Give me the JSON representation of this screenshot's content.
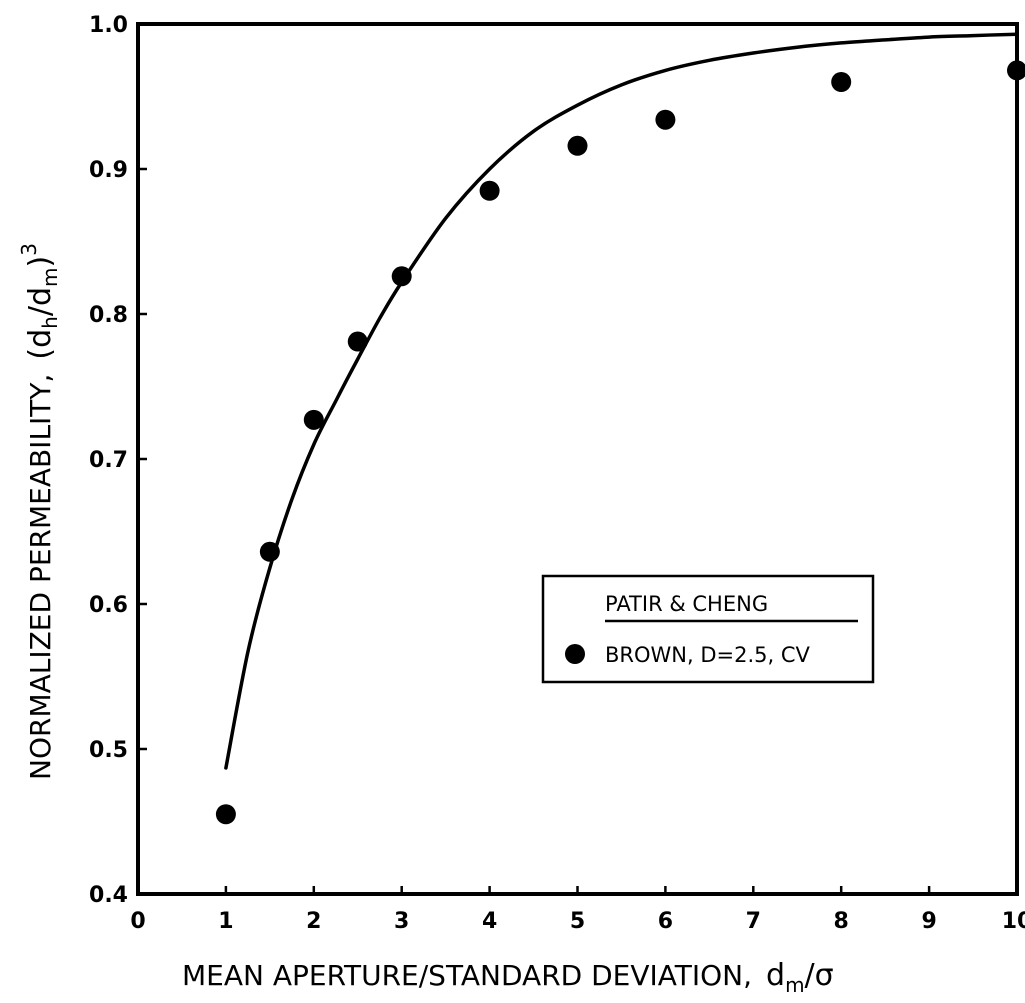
{
  "chart_data": {
    "type": "scatter",
    "xlabel": "MEAN APERTURE/STANDARD DEVIATION,",
    "xlabel_symbol": "d",
    "xlabel_symbol_sub": "m",
    "xlabel_symbol_tail": "/σ",
    "ylabel": "NORMALIZED PERMEABILITY,",
    "ylabel_symbol_open": "(d",
    "ylabel_symbol_sub1": "h",
    "ylabel_symbol_mid": "/d",
    "ylabel_symbol_sub2": "m",
    "ylabel_symbol_close": ")",
    "ylabel_symbol_sup": "3",
    "xlim": [
      0,
      10
    ],
    "ylim": [
      0.4,
      1.0
    ],
    "x_ticks": [
      0,
      1,
      2,
      3,
      4,
      5,
      6,
      7,
      8,
      9,
      10
    ],
    "x_tick_labels": [
      "0",
      "1",
      "2",
      "3",
      "4",
      "5",
      "6",
      "7",
      "8",
      "9",
      "10"
    ],
    "y_ticks": [
      0.4,
      0.5,
      0.6,
      0.7,
      0.8,
      0.9,
      1.0
    ],
    "y_tick_labels": [
      "0.4",
      "0.5",
      "0.6",
      "0.7",
      "0.8",
      "0.9",
      "1.0"
    ],
    "grid": false,
    "legend_position": "center-right",
    "series": [
      {
        "name": "PATIR & CHENG",
        "kind": "line",
        "x": [
          1.0,
          1.25,
          1.5,
          1.75,
          2.0,
          2.25,
          2.5,
          2.75,
          3.0,
          3.5,
          4.0,
          4.5,
          5.0,
          5.5,
          6.0,
          6.5,
          7.0,
          7.5,
          8.0,
          8.5,
          9.0,
          9.5,
          10.0
        ],
        "y": [
          0.487,
          0.567,
          0.625,
          0.672,
          0.71,
          0.74,
          0.769,
          0.797,
          0.822,
          0.866,
          0.9,
          0.926,
          0.944,
          0.958,
          0.968,
          0.975,
          0.98,
          0.984,
          0.987,
          0.989,
          0.991,
          0.992,
          0.993
        ]
      },
      {
        "name": "BROWN, D=2.5, CV",
        "kind": "scatter",
        "marker": "filled-circle",
        "x": [
          1.0,
          1.5,
          2.0,
          2.5,
          3.0,
          4.0,
          5.0,
          6.0,
          8.0,
          10.0
        ],
        "y": [
          0.455,
          0.636,
          0.727,
          0.781,
          0.826,
          0.885,
          0.916,
          0.934,
          0.96,
          0.968
        ]
      }
    ],
    "colors": {
      "line": "#000000",
      "marker": "#000000",
      "frame": "#000000"
    }
  }
}
